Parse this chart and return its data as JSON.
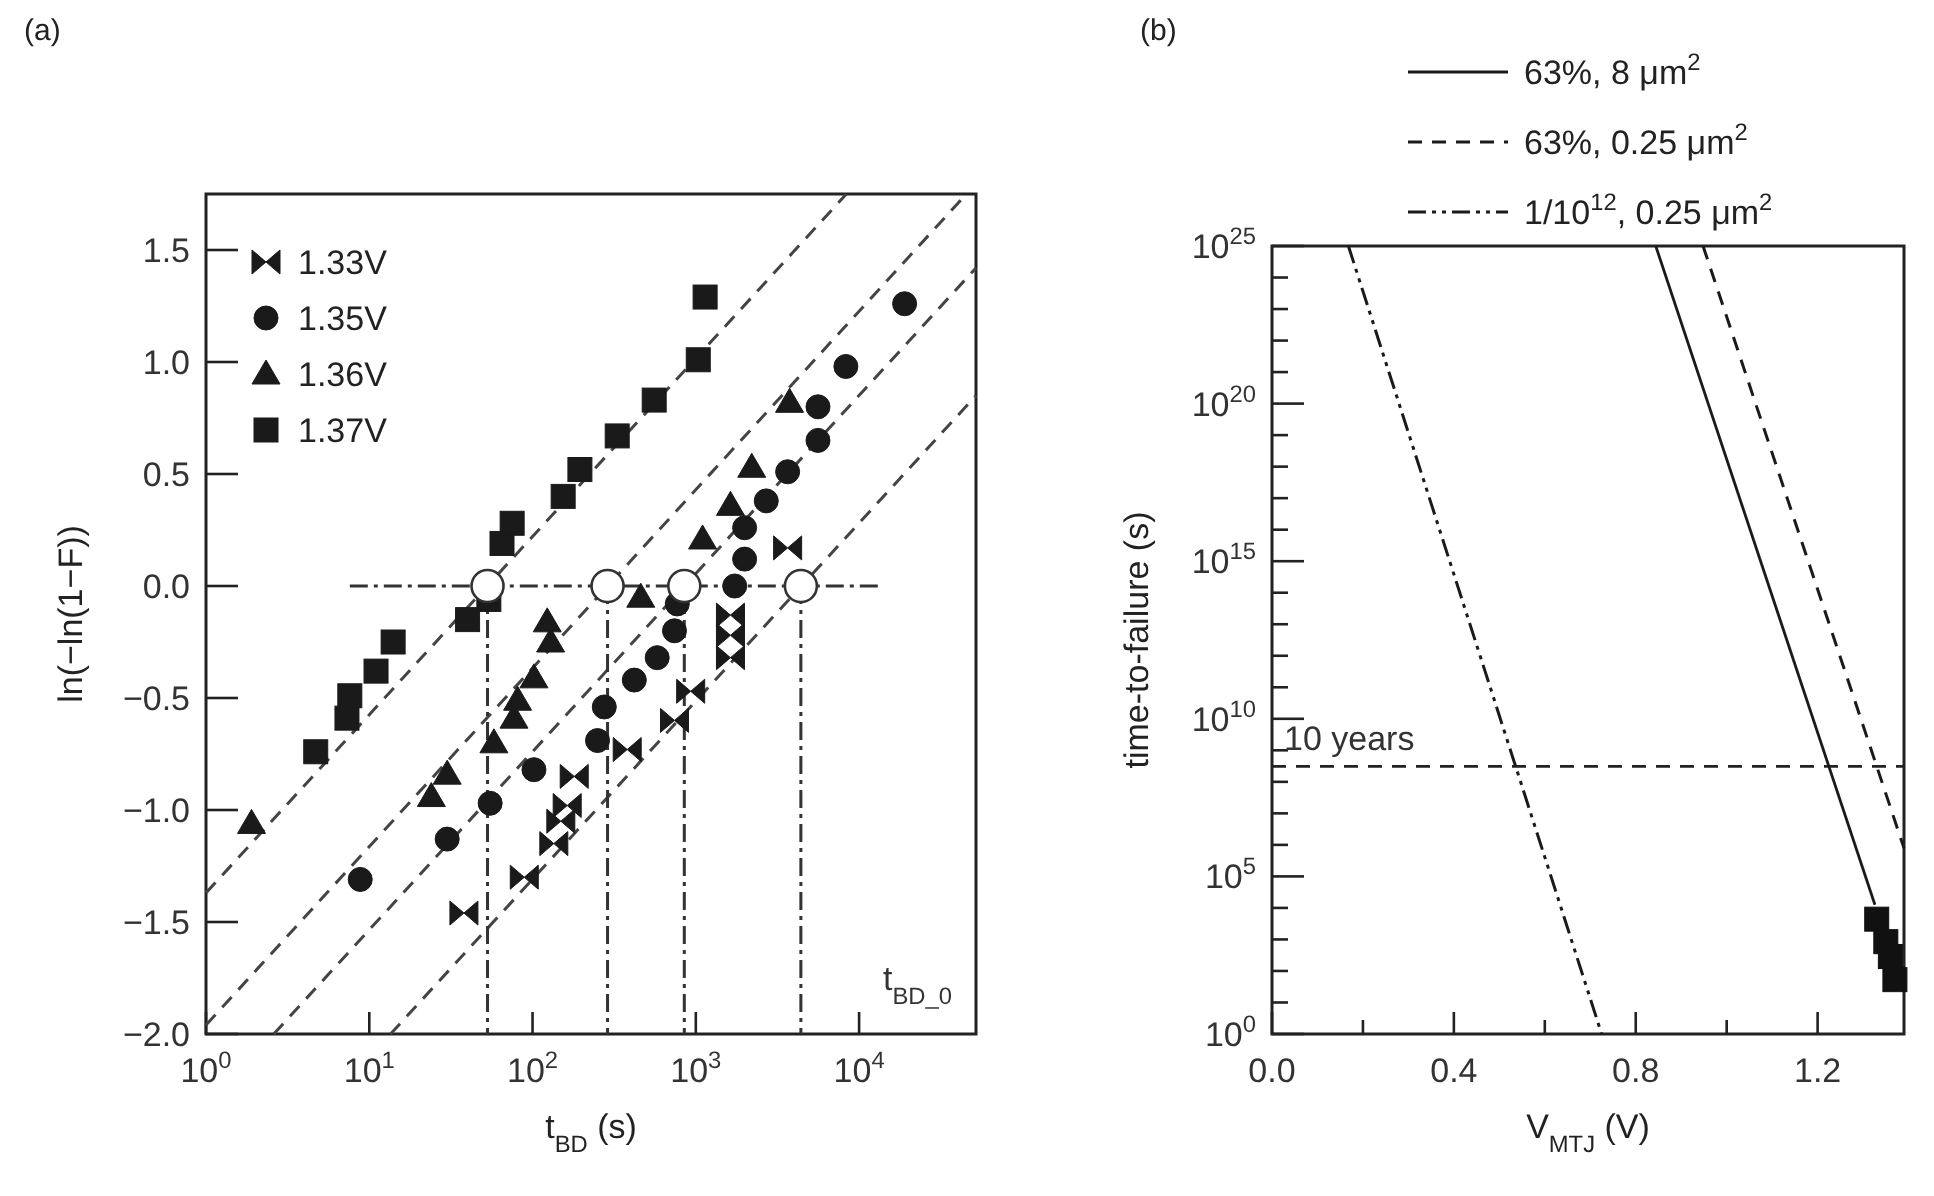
{
  "chart_data": [
    {
      "type": "scatter",
      "title": "(a)",
      "xlabel": "t$_{BD}$ (s)",
      "ylabel": "ln(−ln(1−F))",
      "log": "x",
      "legend": "top left",
      "annotations": [
        "t$_{BD_0}$"
      ],
      "xlim": [
        1,
        52000
      ],
      "xticks": [
        {
          "value": 1,
          "label": "10$^{0}$"
        },
        {
          "value": 10,
          "label": "10$^{1}$"
        },
        {
          "value": 100,
          "label": "10$^{2}$"
        },
        {
          "value": 1000,
          "label": "10$^{3}$"
        },
        {
          "value": 10000,
          "label": "10$^{4}$"
        }
      ],
      "ylim": [
        -2,
        1.75
      ],
      "yticks": [
        {
          "value": -2,
          "label": "−2.0"
        },
        {
          "value": -1.5,
          "label": "−1.5"
        },
        {
          "value": -1,
          "label": "−1.0"
        },
        {
          "value": -0.5,
          "label": "−0.5"
        },
        {
          "value": 0,
          "label": "0.0"
        },
        {
          "value": 0.5,
          "label": "0.5"
        },
        {
          "value": 1,
          "label": "1.0"
        },
        {
          "value": 1.5,
          "label": "1.5"
        }
      ],
      "series": [
        {
          "type": "line",
          "color": "#444444",
          "line_style": "dashed",
          "x": [
            1,
            8360
          ],
          "values": [
            -1.37,
            1.75
          ]
        },
        {
          "type": "line",
          "color": "#444444",
          "line_style": "dashed",
          "x": [
            1,
            45400
          ],
          "values": [
            -1.96,
            1.75
          ]
        },
        {
          "type": "line",
          "color": "#444444",
          "line_style": "dashed",
          "x": [
            2.6,
            52000
          ],
          "values": [
            -2,
            1.42
          ]
        },
        {
          "type": "line",
          "color": "#444444",
          "line_style": "dashed",
          "x": [
            13.5,
            52000
          ],
          "values": [
            -2,
            0.85
          ]
        },
        {
          "type": "line",
          "color": "#333333",
          "line_style": "dashdot",
          "x": [
            7.6,
            13500
          ],
          "values": [
            0,
            0
          ]
        },
        {
          "type": "line",
          "color": "#333333",
          "line_style": "dashdot",
          "x": [
            53,
            53
          ],
          "values": [
            0,
            -2
          ]
        },
        {
          "type": "line",
          "color": "#333333",
          "line_style": "dashdot",
          "x": [
            288,
            288
          ],
          "values": [
            0,
            -2
          ]
        },
        {
          "type": "line",
          "color": "#333333",
          "line_style": "dashdot",
          "x": [
            850,
            850
          ],
          "values": [
            0,
            -2
          ]
        },
        {
          "type": "line",
          "color": "#333333",
          "line_style": "dashdot",
          "x": [
            4400,
            4400
          ],
          "values": [
            0,
            -2
          ]
        },
        {
          "name": "1.33V",
          "color": "#1a1a1a",
          "x": [
            38,
            89,
            135,
            149,
            163,
            180,
            380,
            740,
            930,
            1630,
            1630,
            1630,
            3650
          ],
          "values": [
            -1.46,
            -1.3,
            -1.15,
            -1.05,
            -0.98,
            -0.85,
            -0.73,
            -0.6,
            -0.47,
            -0.32,
            -0.22,
            -0.13,
            0.17
          ]
        },
        {
          "name": "1.35V",
          "marker": "circle",
          "color": "#1a1a1a",
          "x": [
            8.8,
            30,
            55,
            102,
            250,
            275,
            420,
            580,
            740,
            770,
            1730,
            1990,
            1990,
            2700,
            3650,
            5600,
            5600,
            8300,
            19000
          ],
          "values": [
            -1.31,
            -1.13,
            -0.97,
            -0.82,
            -0.69,
            -0.54,
            -0.42,
            -0.32,
            -0.2,
            -0.08,
            0,
            0.12,
            0.26,
            0.38,
            0.51,
            0.65,
            0.8,
            0.98,
            1.26
          ]
        },
        {
          "name": "1.36V",
          "marker": "triangle",
          "color": "#1a1a1a",
          "x": [
            1.9,
            24,
            30,
            58,
            77,
            81,
            102,
            123,
            129,
            460,
            1100,
            1630,
            2200,
            3750
          ],
          "values": [
            -1.06,
            -0.94,
            -0.84,
            -0.7,
            -0.59,
            -0.51,
            -0.41,
            -0.16,
            -0.25,
            -0.05,
            0.21,
            0.36,
            0.53,
            0.82
          ]
        },
        {
          "name": "1.37V",
          "marker": "square",
          "color": "#1a1a1a",
          "x": [
            4.7,
            7.3,
            7.6,
            11,
            14,
            40,
            54,
            65,
            75,
            154,
            195,
            330,
            556,
            1035,
            1140
          ],
          "values": [
            -0.74,
            -0.59,
            -0.49,
            -0.38,
            -0.25,
            -0.15,
            -0.06,
            0.19,
            0.28,
            0.4,
            0.52,
            0.67,
            0.83,
            1.01,
            1.29
          ]
        },
        {
          "marker": "circle",
          "color": "#ffffff",
          "x": [
            53,
            288,
            850,
            4400
          ],
          "values": [
            0,
            0,
            0,
            0
          ]
        }
      ]
    },
    {
      "type": "line",
      "title": "(b)",
      "xlabel": "V$_{MTJ}$ (V)",
      "ylabel": "time-to-failure (s)",
      "log": "y",
      "legend": "top right",
      "xlim": [
        0,
        1.39
      ],
      "xticks": [
        {
          "value": 0,
          "label": "0.0"
        },
        {
          "value": 0.2,
          "label": null
        },
        {
          "value": 0.4,
          "label": "0.4"
        },
        {
          "value": 0.6,
          "label": null
        },
        {
          "value": 0.8,
          "label": "0.8"
        },
        {
          "value": 1,
          "label": null
        },
        {
          "value": 1.2,
          "label": "1.2"
        }
      ],
      "ylim": [
        1,
        1e+25
      ],
      "yticks": [
        {
          "value": 1,
          "label": "10$^{0}$"
        },
        {
          "value": 10,
          "label": null
        },
        {
          "value": 100,
          "label": null
        },
        {
          "value": 1000,
          "label": null
        },
        {
          "value": 10000,
          "label": null
        },
        {
          "value": 100000.0,
          "label": "10$^{5}$"
        },
        {
          "value": 1000000.0,
          "label": null
        },
        {
          "value": 10000000.0,
          "label": null
        },
        {
          "value": 100000000.0,
          "label": null
        },
        {
          "value": 1000000000.0,
          "label": null
        },
        {
          "value": 10000000000.0,
          "label": "10$^{10}$"
        },
        {
          "value": 100000000000.0,
          "label": null
        },
        {
          "value": 1000000000000.0,
          "label": null
        },
        {
          "value": 10000000000000.0,
          "label": null
        },
        {
          "value": 100000000000000.0,
          "label": null
        },
        {
          "value": 1000000000000000.0,
          "label": "10$^{15}$"
        },
        {
          "value": 1e+16,
          "label": null
        },
        {
          "value": 1e+17,
          "label": null
        },
        {
          "value": 1e+18,
          "label": null
        },
        {
          "value": 1e+19,
          "label": null
        },
        {
          "value": 1e+20,
          "label": "10$^{20}$"
        },
        {
          "value": 1e+21,
          "label": null
        },
        {
          "value": 1e+22,
          "label": null
        },
        {
          "value": 1e+23,
          "label": null
        },
        {
          "value": 1e+24,
          "label": null
        },
        {
          "value": 1e+25,
          "label": "10$^{25}$"
        }
      ],
      "ref_lines": [
        {
          "axis": "y",
          "value": 310000000.0,
          "label": "10 years",
          "line_style": "dashed",
          "color": "#222222"
        }
      ],
      "series": [
        {
          "name": "63%, 8 μm$^{2}$",
          "color": "#1a1a1a",
          "line_style": "solid",
          "x": [
            0.844,
            1.326
          ],
          "values": [
            1e+25,
            12600
          ]
        },
        {
          "name": "63%, 0.25 μm$^{2}$",
          "color": "#1a1a1a",
          "line_style": "dashed",
          "x": [
            0.948,
            1.39
          ],
          "values": [
            1e+25,
            790000
          ]
        },
        {
          "name": "1/10$^{12}$, 0.25 μm$^{2}$",
          "color": "#1a1a1a",
          "line_style": "dashdotdot",
          "x": [
            0.168,
            0.725
          ],
          "values": [
            1e+25,
            1
          ]
        },
        {
          "type": "scatter",
          "marker": "square",
          "color": "#111111",
          "x": [
            1.33,
            1.35,
            1.36,
            1.37
          ],
          "values": [
            4400,
            850,
            288,
            53
          ]
        }
      ]
    }
  ]
}
